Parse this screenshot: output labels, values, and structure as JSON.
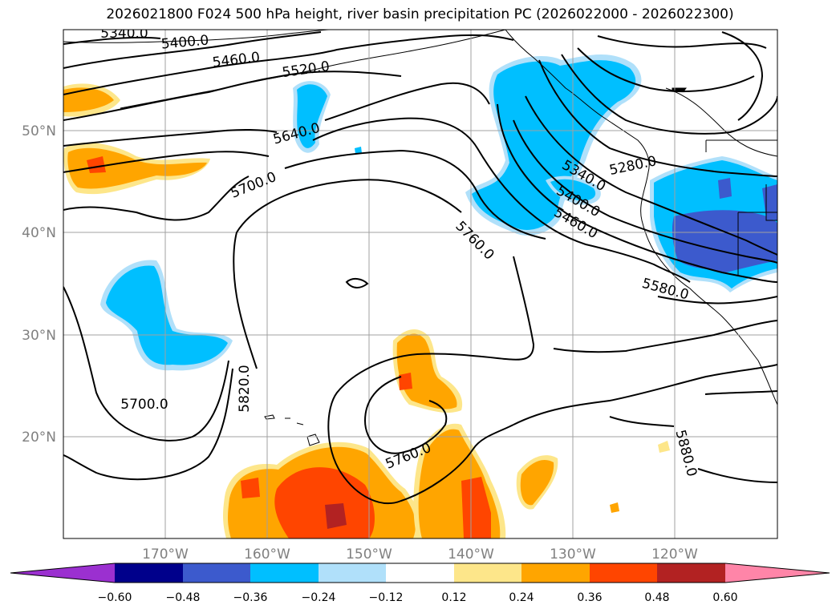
{
  "title": "2026021800 F024 500 hPa height, river basin precipitation PC (2026022000 - 2026022300)",
  "map": {
    "lat_ticks": [
      "50°N",
      "40°N",
      "30°N",
      "20°N"
    ],
    "lon_ticks": [
      "170°W",
      "160°W",
      "150°W",
      "140°W",
      "130°W",
      "120°W"
    ],
    "contour_labels": [
      "5340.0",
      "5400.0",
      "5460.0",
      "5520.0",
      "5640.0",
      "5700.0",
      "5760.0",
      "5280.0",
      "5340.0",
      "5400.0",
      "5460.0",
      "5580.0",
      "5700.0",
      "5820.0",
      "5760.0",
      "5880.0"
    ]
  },
  "colorbar": {
    "ticks": [
      "−0.60",
      "−0.48",
      "−0.36",
      "−0.24",
      "−0.12",
      "0.12",
      "0.24",
      "0.36",
      "0.48",
      "0.60"
    ],
    "colors": [
      "#9b30d0",
      "#00008b",
      "#3c5acd",
      "#00bfff",
      "#b0e0fa",
      "#ffffff",
      "#fde68a",
      "#ffa500",
      "#ff4500",
      "#b22222",
      "#ff85a8"
    ]
  }
}
